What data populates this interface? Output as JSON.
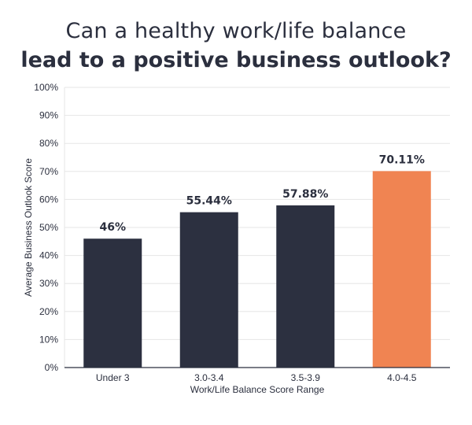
{
  "title_line1": "Can a healthy work/life balance",
  "title_line2": "lead to a positive business outlook?",
  "chart_data": {
    "type": "bar",
    "title": "Can a healthy work/life balance lead to a positive business outlook?",
    "xlabel": "Work/Life Balance Score Range",
    "ylabel": "Average Business Outlook Score",
    "categories": [
      "Under 3",
      "3.0-3.4",
      "3.5-3.9",
      "4.0-4.5"
    ],
    "values": [
      46,
      55.44,
      57.88,
      70.11
    ],
    "data_labels": [
      "46%",
      "55.44%",
      "57.88%",
      "70.11%"
    ],
    "ylim": [
      0,
      100
    ],
    "y_ticks": [
      0,
      10,
      20,
      30,
      40,
      50,
      60,
      70,
      80,
      90,
      100
    ],
    "y_tick_labels": [
      "0%",
      "10%",
      "20%",
      "30%",
      "40%",
      "50%",
      "60%",
      "70%",
      "80%",
      "90%",
      "100%"
    ],
    "grid": true,
    "legend": "none",
    "colors": {
      "default_bar": "#2c3040",
      "highlight_bar": "#f08452",
      "grid": "#e6e6e6",
      "axis": "#2b2f3e"
    },
    "highlight_index": 3
  }
}
